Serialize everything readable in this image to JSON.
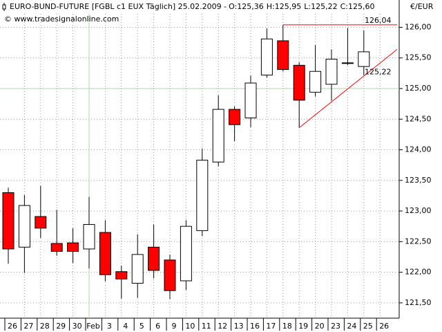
{
  "chart_data": {
    "type": "candlestick",
    "title": "EURO-BUND-FUTURE [FGBL c1 EUX  Täglich] 25.02.2009 -",
    "header_values": [
      {
        "label": "O:125,36",
        "color": "#ff0000"
      },
      {
        "label": "H:125,95",
        "color": "#000000"
      },
      {
        "label": "L:125,22",
        "color": "#000000"
      },
      {
        "label": "C:125,60",
        "color": "#00a000"
      }
    ],
    "subtitle": "© www.tradesignalonline.com",
    "y_unit": "€/EUR",
    "categories": [
      "26",
      "27",
      "28",
      "29",
      "30",
      "Feb",
      "3",
      "4",
      "5",
      "6",
      "9",
      "10",
      "11",
      "12",
      "13",
      "16",
      "17",
      "18",
      "19",
      "20",
      "23",
      "24",
      "25",
      "26"
    ],
    "open": [
      123.3,
      122.41,
      122.91,
      122.47,
      122.48,
      122.38,
      122.65,
      122.01,
      121.82,
      122.41,
      122.2,
      121.86,
      122.68,
      123.8,
      124.66,
      124.52,
      125.22,
      125.78,
      125.38,
      124.94,
      125.07,
      125.42,
      125.36,
      null
    ],
    "high": [
      123.38,
      123.26,
      123.41,
      123.02,
      122.72,
      123.23,
      122.85,
      122.11,
      122.62,
      122.78,
      122.29,
      122.85,
      124.02,
      124.89,
      124.71,
      125.21,
      125.98,
      126.04,
      125.43,
      125.71,
      125.64,
      125.99,
      125.95,
      null
    ],
    "low": [
      122.14,
      121.99,
      122.56,
      122.27,
      122.15,
      122.06,
      121.85,
      121.57,
      121.58,
      121.9,
      121.56,
      121.71,
      122.59,
      123.73,
      124.14,
      124.37,
      125.18,
      125.28,
      124.36,
      124.87,
      124.8,
      125.38,
      125.22,
      null
    ],
    "close": [
      122.38,
      123.09,
      122.72,
      122.34,
      122.34,
      122.78,
      121.96,
      121.89,
      122.29,
      122.03,
      121.7,
      122.75,
      123.83,
      124.66,
      124.41,
      125.09,
      125.81,
      125.31,
      124.81,
      125.28,
      125.48,
      125.42,
      125.6,
      null
    ],
    "up_color": "#ffffff",
    "down_color": "#ff0000",
    "ylim": [
      121.25,
      126.22
    ],
    "yticks": [
      {
        "value": 121.5,
        "label": "121,50"
      },
      {
        "value": 122,
        "label": "122,00"
      },
      {
        "value": 122.5,
        "label": "122,50"
      },
      {
        "value": 123,
        "label": "123,00"
      },
      {
        "value": 123.5,
        "label": "123,50"
      },
      {
        "value": 124,
        "label": "124,00"
      },
      {
        "value": 124.5,
        "label": "124,50"
      },
      {
        "value": 125,
        "label": "125,00"
      },
      {
        "value": 125.5,
        "label": "125,50"
      },
      {
        "value": 126,
        "label": "126,00"
      }
    ],
    "grid": true,
    "crosshair_y": 125,
    "resistance": {
      "value": 126.04,
      "label": "126,04",
      "color": "#ff0000"
    },
    "trend_line": {
      "values": [
        124.36,
        125.64
      ],
      "color": "#ff0000"
    },
    "trend_label": {
      "value": 125.22,
      "label": "125,22"
    }
  }
}
